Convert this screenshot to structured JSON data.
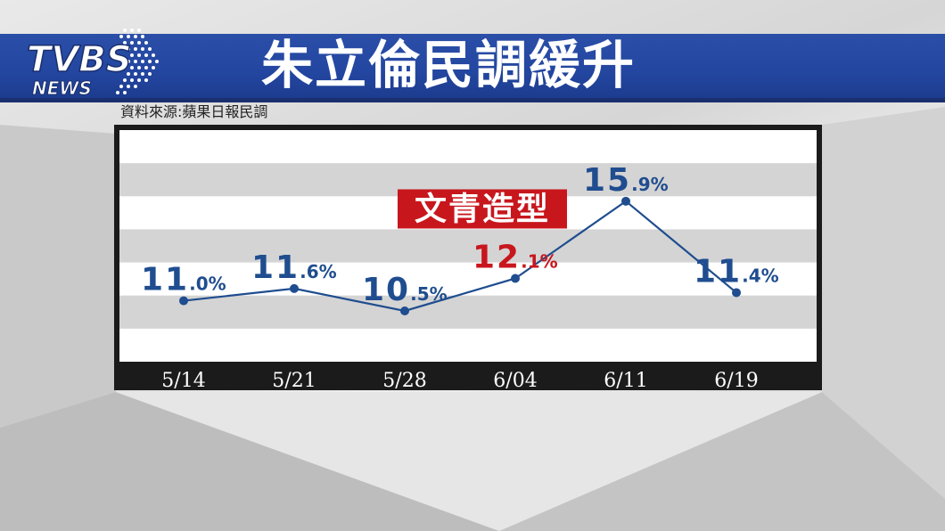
{
  "header": {
    "logo_text": "TVBS",
    "logo_subtext": "NEWS",
    "title": "朱立倫民調緩升",
    "source": "資料來源:蘋果日報民調"
  },
  "colors": {
    "title_bar": "#2346a0",
    "series": "#1f4d8f",
    "highlight_value": "#c8161d",
    "highlight_badge": "#c8161d",
    "axis_bar": "#1b1b1b"
  },
  "chart_data": {
    "type": "line",
    "title": "朱立倫民調緩升",
    "categories": [
      "5/14",
      "5/21",
      "5/28",
      "6/04",
      "6/11",
      "6/19"
    ],
    "series": [
      {
        "values": [
          11.0,
          11.6,
          10.5,
          12.1,
          15.9,
          11.4
        ]
      }
    ],
    "value_labels": [
      {
        "int": "11",
        "dec": ".0%",
        "highlight": false
      },
      {
        "int": "11",
        "dec": ".6%",
        "highlight": false
      },
      {
        "int": "10",
        "dec": ".5%",
        "highlight": false
      },
      {
        "int": "12",
        "dec": ".1%",
        "highlight": true
      },
      {
        "int": "15",
        "dec": ".9%",
        "highlight": false
      },
      {
        "int": "11",
        "dec": ".4%",
        "highlight": false
      }
    ],
    "annotation": {
      "text": "文青造型",
      "category": "6/04"
    },
    "grid": true,
    "xlabel": "",
    "ylabel": ""
  }
}
